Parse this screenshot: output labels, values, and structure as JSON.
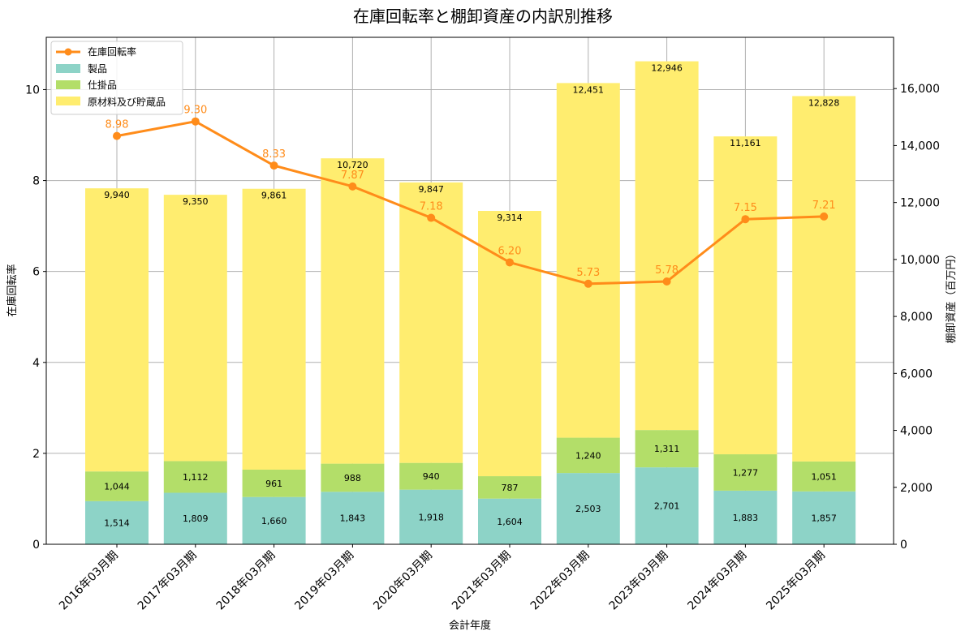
{
  "chart_data": {
    "type": "bar",
    "title": "在庫回転率と棚卸資産の内訳別推移",
    "xlabel": "会計年度",
    "ylabel_left": "在庫回転率",
    "ylabel_right": "棚卸資産（百万円）",
    "categories": [
      "2016年03月期",
      "2017年03月期",
      "2018年03月期",
      "2019年03月期",
      "2020年03月期",
      "2021年03月期",
      "2022年03月期",
      "2023年03月期",
      "2024年03月期",
      "2025年03月期"
    ],
    "series": [
      {
        "name": "製品",
        "values": [
          1514,
          1809,
          1660,
          1843,
          1918,
          1604,
          2503,
          2701,
          1883,
          1857
        ],
        "labels": [
          "1,514",
          "1,809",
          "1,660",
          "1,843",
          "1,918",
          "1,604",
          "2,503",
          "2,701",
          "1,883",
          "1,857"
        ],
        "color": "#8dd3c7"
      },
      {
        "name": "仕掛品",
        "values": [
          1044,
          1112,
          961,
          988,
          940,
          787,
          1240,
          1311,
          1277,
          1051
        ],
        "labels": [
          "1,044",
          "1,112",
          "961",
          "988",
          "940",
          "787",
          "1,240",
          "1,311",
          "1,277",
          "1,051"
        ],
        "color": "#b3de69"
      },
      {
        "name": "原材料及び貯蔵品",
        "values": [
          9940,
          9350,
          9861,
          10720,
          9847,
          9314,
          12451,
          12946,
          11161,
          12828
        ],
        "labels": [
          "9,940",
          "9,350",
          "9,861",
          "10,720",
          "9,847",
          "9,314",
          "12,451",
          "12,946",
          "11,161",
          "12,828"
        ],
        "color": "#ffed6f"
      }
    ],
    "rate_series": {
      "name": "在庫回転率",
      "values": [
        8.98,
        9.3,
        8.33,
        7.87,
        7.18,
        6.2,
        5.73,
        5.78,
        7.15,
        7.21
      ],
      "labels": [
        "8.98",
        "9.30",
        "8.33",
        "7.87",
        "7.18",
        "6.20",
        "5.73",
        "5.78",
        "7.15",
        "7.21"
      ],
      "color": "#ff8c1a"
    },
    "ylim_left": [
      0,
      11.15
    ],
    "ylim_right": [
      0,
      17800
    ],
    "yticks_left": [
      "0",
      "2",
      "4",
      "6",
      "8",
      "10"
    ],
    "yticks_right": [
      "0",
      "2,000",
      "4,000",
      "6,000",
      "8,000",
      "10,000",
      "12,000",
      "14,000",
      "16,000"
    ],
    "grid": true,
    "legend": "top-left"
  }
}
